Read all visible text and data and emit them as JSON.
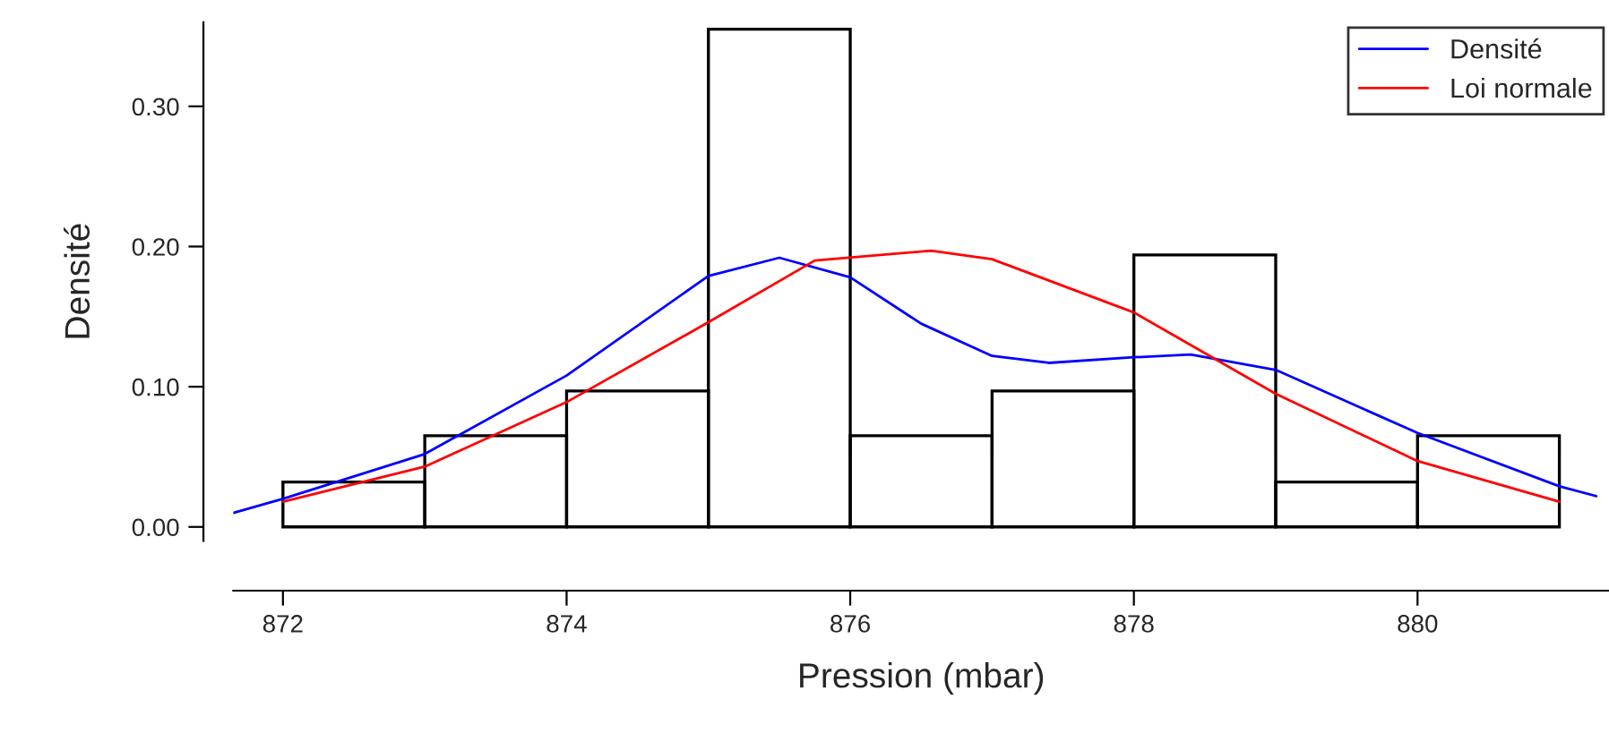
{
  "chart_data": {
    "type": "histogram",
    "xlabel": "Pression (mbar)",
    "ylabel": "Densité",
    "bins": [
      872,
      873,
      874,
      875,
      876,
      877,
      878,
      879,
      880,
      881
    ],
    "values": [
      0.032,
      0.065,
      0.097,
      0.355,
      0.065,
      0.097,
      0.194,
      0.032,
      0.065
    ],
    "color": "#000000",
    "series": [
      {
        "name": "Densité",
        "type": "line",
        "color": "#0000ff",
        "x": [
          871.65,
          872,
          873,
          874,
          875,
          875.5,
          876,
          876.5,
          877,
          877.4,
          878,
          878.4,
          879,
          880,
          881,
          881.26
        ],
        "values": [
          0.01,
          0.02,
          0.052,
          0.108,
          0.179,
          0.192,
          0.178,
          0.145,
          0.122,
          0.117,
          0.121,
          0.123,
          0.112,
          0.067,
          0.029,
          0.022
        ]
      },
      {
        "name": "Loi normale",
        "type": "line",
        "color": "#ff0000",
        "x": [
          872,
          873,
          874,
          875,
          875.75,
          876.57,
          877,
          878,
          879,
          880,
          881
        ],
        "values": [
          0.018,
          0.043,
          0.089,
          0.146,
          0.19,
          0.197,
          0.191,
          0.153,
          0.095,
          0.047,
          0.018
        ]
      }
    ],
    "xlim": [
      871.65,
      881.35
    ],
    "xticks": [
      872,
      874,
      876,
      878,
      880
    ],
    "ylim": [
      -0.01,
      0.36
    ],
    "yticks": [
      {
        "value": 0,
        "label": "0.00"
      },
      {
        "value": 0.1,
        "label": "0.10"
      },
      {
        "value": 0.2,
        "label": "0.20"
      },
      {
        "value": 0.3,
        "label": "0.30"
      }
    ],
    "legend": "top right",
    "grid": false
  }
}
